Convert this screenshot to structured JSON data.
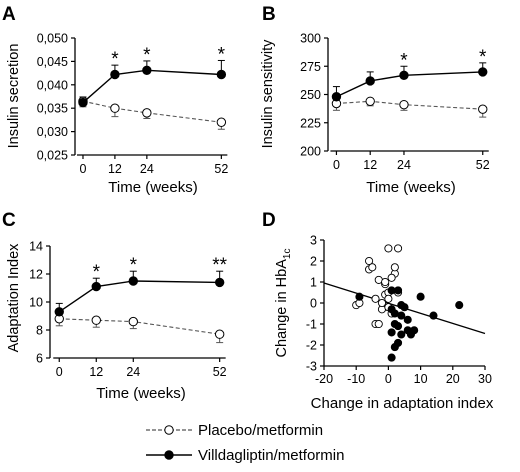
{
  "chart_data": [
    {
      "panel": "A",
      "type": "line",
      "xlabel": "Time (weeks)",
      "ylabel": "Insulin secretion",
      "x": [
        0,
        12,
        24,
        52
      ],
      "xticks": [
        "0",
        "12",
        "24",
        "52"
      ],
      "ylim": [
        0.025,
        0.05
      ],
      "yticks": [
        "0,025",
        "0,030",
        "0,035",
        "0,040",
        "0,045",
        "0,050"
      ],
      "series": [
        {
          "name": "Placebo/metformin",
          "values": [
            0.0365,
            0.035,
            0.034,
            0.032
          ],
          "err": [
            0.0012,
            0.0018,
            0.0012,
            0.0015
          ]
        },
        {
          "name": "Villdagliptin/metformin",
          "values": [
            0.0362,
            0.0422,
            0.0431,
            0.0422
          ],
          "err": [
            0.0012,
            0.002,
            0.002,
            0.003
          ]
        }
      ],
      "significance": [
        "",
        "*",
        "*",
        "*"
      ]
    },
    {
      "panel": "B",
      "type": "line",
      "xlabel": "Time (weeks)",
      "ylabel": "Insulin sensitivity",
      "x": [
        0,
        12,
        24,
        52
      ],
      "xticks": [
        "0",
        "12",
        "24",
        "52"
      ],
      "ylim": [
        200,
        300
      ],
      "yticks": [
        "200",
        "225",
        "250",
        "275",
        "300"
      ],
      "series": [
        {
          "name": "Placebo/metformin",
          "values": [
            242,
            244,
            241,
            237
          ],
          "err": [
            6,
            4,
            5,
            7
          ]
        },
        {
          "name": "Villdagliptin/metformin",
          "values": [
            248,
            262,
            267,
            270
          ],
          "err": [
            9,
            8,
            8,
            8
          ]
        }
      ],
      "significance": [
        "",
        "",
        "*",
        "*"
      ]
    },
    {
      "panel": "C",
      "type": "line",
      "xlabel": "Time (weeks)",
      "ylabel": "Adaptation Index",
      "x": [
        0,
        12,
        24,
        52
      ],
      "xticks": [
        "0",
        "12",
        "24",
        "52"
      ],
      "ylim": [
        6,
        14
      ],
      "yticks": [
        "6",
        "8",
        "10",
        "12",
        "14"
      ],
      "series": [
        {
          "name": "Placebo/metformin",
          "values": [
            8.8,
            8.7,
            8.6,
            7.7
          ],
          "err": [
            0.5,
            0.5,
            0.5,
            0.6
          ]
        },
        {
          "name": "Villdagliptin/metformin",
          "values": [
            9.3,
            11.1,
            11.5,
            11.4
          ],
          "err": [
            0.6,
            0.6,
            0.7,
            0.8
          ]
        }
      ],
      "significance": [
        "",
        "*",
        "*",
        "**"
      ]
    },
    {
      "panel": "D",
      "type": "scatter",
      "xlabel": "Change in adaptation index",
      "ylabel_main": "Change in HbA",
      "ylabel_sub": "1c",
      "xlim": [
        -20,
        30
      ],
      "ylim": [
        -3,
        3
      ],
      "xticks": [
        "-20",
        "-10",
        "0",
        "10",
        "20",
        "30"
      ],
      "yticks": [
        "-3",
        "-2",
        "-1",
        "0",
        "1",
        "2",
        "3"
      ],
      "series": [
        {
          "name": "Placebo/metformin",
          "points": [
            [
              -6,
              2.0
            ],
            [
              -6,
              1.6
            ],
            [
              -5,
              1.7
            ],
            [
              -3,
              1.1
            ],
            [
              0,
              2.6
            ],
            [
              3,
              2.6
            ],
            [
              2,
              1.4
            ],
            [
              1,
              1.2
            ],
            [
              -4,
              0.2
            ],
            [
              -1,
              0.4
            ],
            [
              0,
              0.5
            ],
            [
              -2,
              -0.3
            ],
            [
              -4,
              -1.0
            ],
            [
              -1,
              0.9
            ],
            [
              2,
              1.7
            ],
            [
              -10,
              -0.1
            ],
            [
              -9,
              0.0
            ],
            [
              -2,
              0.0
            ],
            [
              1,
              -0.5
            ],
            [
              0,
              -0.2
            ],
            [
              -1,
              1.0
            ],
            [
              0,
              0.2
            ],
            [
              3,
              0.5
            ],
            [
              -3,
              -1.0
            ]
          ]
        },
        {
          "name": "Villdagliptin/metformin",
          "points": [
            [
              -9,
              0.3
            ],
            [
              1,
              0.6
            ],
            [
              3,
              0.6
            ],
            [
              4,
              -0.1
            ],
            [
              5,
              -0.2
            ],
            [
              1,
              -0.3
            ],
            [
              2,
              -0.5
            ],
            [
              4,
              -0.6
            ],
            [
              6,
              -0.8
            ],
            [
              2,
              -1.0
            ],
            [
              3,
              -1.1
            ],
            [
              6,
              -1.3
            ],
            [
              8,
              -1.3
            ],
            [
              1,
              -1.4
            ],
            [
              4,
              -1.5
            ],
            [
              7,
              -1.5
            ],
            [
              14,
              -0.6
            ],
            [
              22,
              -0.1
            ],
            [
              3,
              -1.9
            ],
            [
              2,
              -2.1
            ],
            [
              1,
              -2.6
            ],
            [
              10,
              0.3
            ]
          ]
        }
      ],
      "regression": {
        "x": [
          -20,
          30
        ],
        "y": [
          0.95,
          -1.45
        ]
      }
    }
  ],
  "legend": [
    {
      "label": "Placebo/metformin",
      "marker": "open-circle",
      "line": "dashed"
    },
    {
      "label": "Villdagliptin/metformin",
      "marker": "filled-circle",
      "line": "solid"
    }
  ]
}
